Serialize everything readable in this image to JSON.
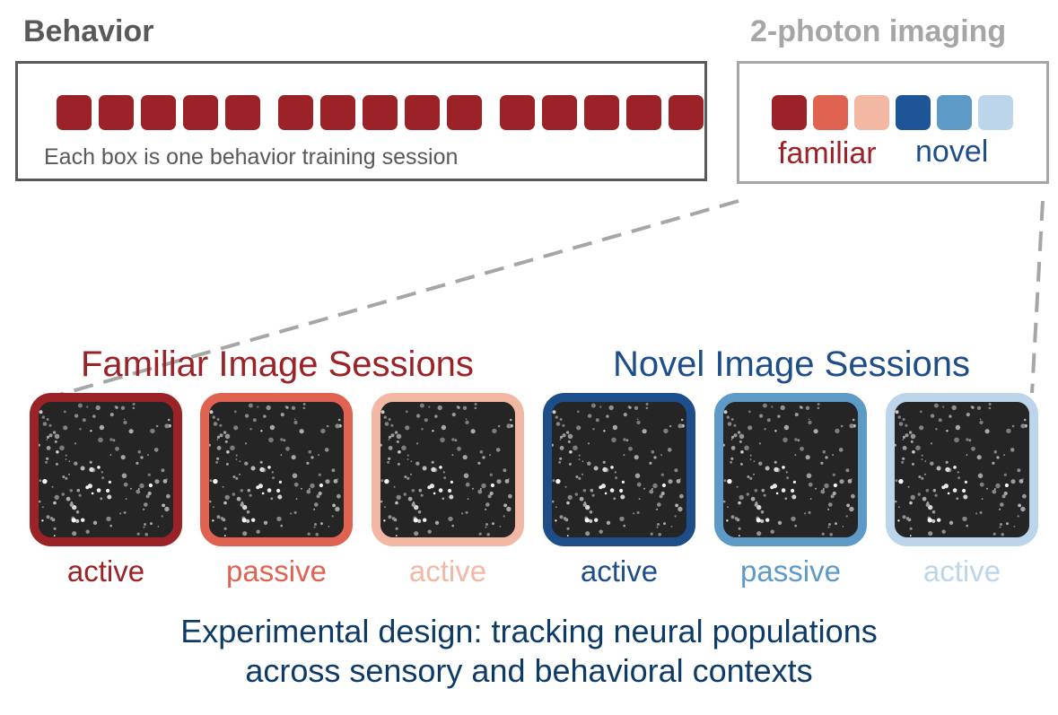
{
  "behavior": {
    "title": "Behavior",
    "caption": "Each box is one behavior training session",
    "session_count": 15,
    "session_color": "#9b2226"
  },
  "imaging": {
    "title": "2-photon imaging",
    "squares": [
      {
        "condition": "familiar",
        "color": "#9b2226"
      },
      {
        "condition": "familiar",
        "color": "#e06352"
      },
      {
        "condition": "familiar",
        "color": "#f2b8a4"
      },
      {
        "condition": "novel",
        "color": "#1d5596"
      },
      {
        "condition": "novel",
        "color": "#5e9ac6"
      },
      {
        "condition": "novel",
        "color": "#bcd5ea"
      }
    ],
    "familiar_label": "familiar",
    "novel_label": "novel"
  },
  "sessions": {
    "familiar_title": "Familiar Image Sessions",
    "novel_title": "Novel Image Sessions",
    "panels": [
      {
        "label": "active",
        "color": "#9b2226"
      },
      {
        "label": "passive",
        "color": "#e06352"
      },
      {
        "label": "active",
        "color": "#f2b8a4"
      },
      {
        "label": "active",
        "color": "#1d4e89"
      },
      {
        "label": "passive",
        "color": "#5e9ac6"
      },
      {
        "label": "active",
        "color": "#bcd5ea"
      }
    ]
  },
  "footer": {
    "line1": "Experimental design: tracking neural populations",
    "line2": "across sensory and behavioral contexts"
  }
}
